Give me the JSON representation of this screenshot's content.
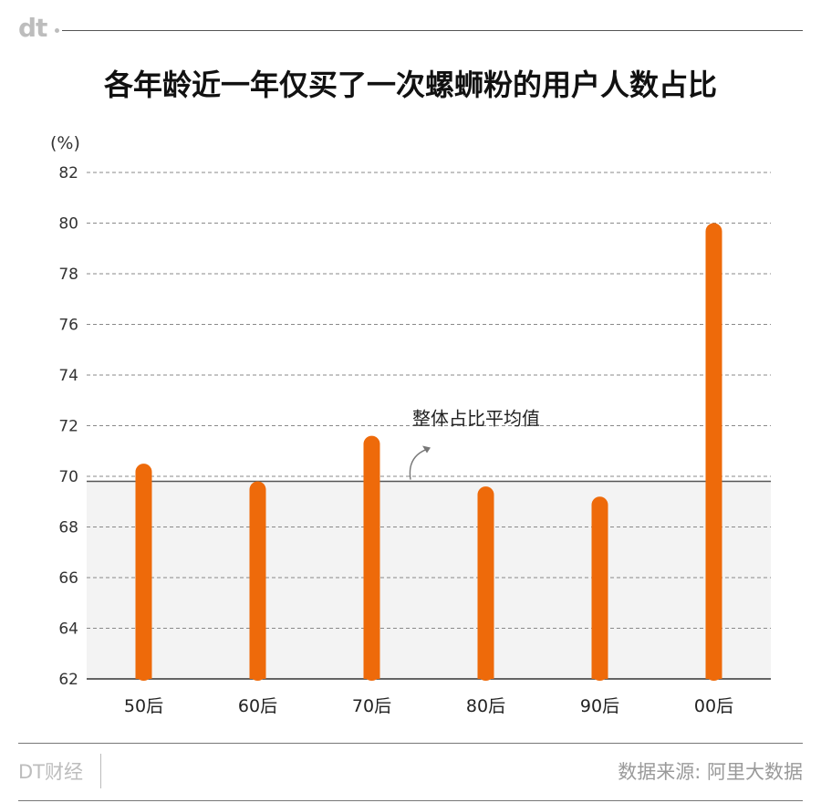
{
  "brand": {
    "logo_text": "dt",
    "footer_left": "DT财经"
  },
  "title": "各年龄近一年仅买了一次螺蛳粉的用户人数占比",
  "source": "数据来源: 阿里大数据",
  "colors": {
    "bar": "#ee6a0a",
    "average_band": "#f3f3f3",
    "average_line": "#555555"
  },
  "chart_data": {
    "type": "bar",
    "title": "各年龄近一年仅买了一次螺蛳粉的用户人数占比",
    "ylabel": "(%)",
    "xlabel": "",
    "categories": [
      "50后",
      "60后",
      "70后",
      "80后",
      "90后",
      "00后"
    ],
    "values": [
      70.5,
      69.8,
      71.6,
      69.6,
      69.2,
      80.0
    ],
    "ylim": [
      62,
      82
    ],
    "yticks": [
      62,
      64,
      66,
      68,
      70,
      72,
      74,
      76,
      78,
      80,
      82
    ],
    "grid": true,
    "average": {
      "value": 69.8,
      "label": "整体占比平均值"
    }
  }
}
